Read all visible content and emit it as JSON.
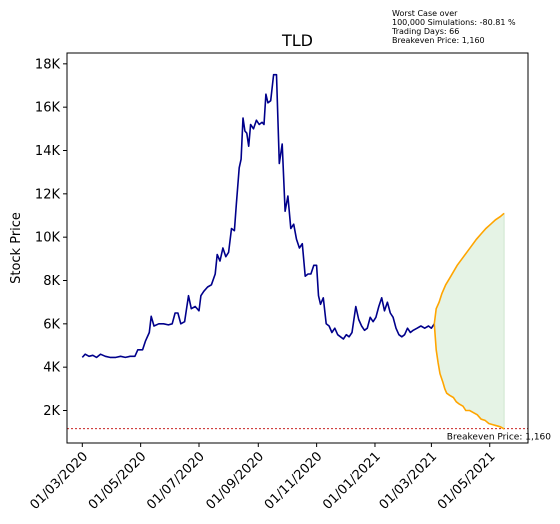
{
  "chart_data": {
    "type": "line",
    "title": "TLD",
    "ylabel": "Stock Price",
    "xlabel": "",
    "x_range": [
      "2020-02-14",
      "2021-06-10"
    ],
    "ylim": [
      500,
      18500
    ],
    "y_ticks": [
      2000,
      4000,
      6000,
      8000,
      10000,
      12000,
      14000,
      16000,
      18000
    ],
    "y_tick_labels": [
      "2K",
      "4K",
      "6K",
      "8K",
      "10K",
      "12K",
      "14K",
      "16K",
      "18K"
    ],
    "x_ticks": [
      "2020-03-01",
      "2020-05-01",
      "2020-07-01",
      "2020-09-01",
      "2020-11-01",
      "2021-01-01",
      "2021-03-01",
      "2021-05-01"
    ],
    "x_tick_labels": [
      "01/03/2020",
      "01/05/2020",
      "01/07/2020",
      "01/09/2020",
      "01/11/2020",
      "01/01/2021",
      "01/03/2021",
      "01/05/2021"
    ],
    "grid": false,
    "annotation_lines": [
      "Worst Case over",
      "100,000 Simulations: -80.81 %",
      "Trading Days: 66",
      "Breakeven Price: 1,160"
    ],
    "breakeven": {
      "value": 1160,
      "label": "Breakeven Price: 1,160",
      "color": "#c00000"
    },
    "series": [
      {
        "type": "historical",
        "color": "#00008b",
        "points": [
          [
            "2020-03-01",
            4450
          ],
          [
            "2020-03-04",
            4600
          ],
          [
            "2020-03-08",
            4500
          ],
          [
            "2020-03-12",
            4550
          ],
          [
            "2020-03-16",
            4450
          ],
          [
            "2020-03-20",
            4600
          ],
          [
            "2020-03-25",
            4500
          ],
          [
            "2020-03-30",
            4450
          ],
          [
            "2020-04-05",
            4450
          ],
          [
            "2020-04-10",
            4500
          ],
          [
            "2020-04-15",
            4450
          ],
          [
            "2020-04-20",
            4500
          ],
          [
            "2020-04-25",
            4500
          ],
          [
            "2020-04-28",
            4800
          ],
          [
            "2020-05-03",
            4800
          ],
          [
            "2020-05-06",
            5200
          ],
          [
            "2020-05-10",
            5600
          ],
          [
            "2020-05-12",
            6350
          ],
          [
            "2020-05-15",
            5900
          ],
          [
            "2020-05-20",
            6000
          ],
          [
            "2020-05-25",
            6000
          ],
          [
            "2020-05-30",
            5950
          ],
          [
            "2020-06-03",
            6000
          ],
          [
            "2020-06-06",
            6500
          ],
          [
            "2020-06-09",
            6500
          ],
          [
            "2020-06-12",
            6000
          ],
          [
            "2020-06-16",
            6100
          ],
          [
            "2020-06-20",
            7300
          ],
          [
            "2020-06-23",
            6700
          ],
          [
            "2020-06-27",
            6800
          ],
          [
            "2020-07-01",
            6600
          ],
          [
            "2020-07-03",
            7300
          ],
          [
            "2020-07-06",
            7500
          ],
          [
            "2020-07-10",
            7700
          ],
          [
            "2020-07-14",
            7800
          ],
          [
            "2020-07-18",
            8300
          ],
          [
            "2020-07-20",
            9200
          ],
          [
            "2020-07-23",
            8900
          ],
          [
            "2020-07-26",
            9500
          ],
          [
            "2020-07-29",
            9100
          ],
          [
            "2020-08-01",
            9300
          ],
          [
            "2020-08-04",
            10400
          ],
          [
            "2020-08-07",
            10300
          ],
          [
            "2020-08-09",
            11500
          ],
          [
            "2020-08-12",
            13200
          ],
          [
            "2020-08-14",
            13600
          ],
          [
            "2020-08-16",
            15500
          ],
          [
            "2020-08-18",
            14900
          ],
          [
            "2020-08-20",
            14800
          ],
          [
            "2020-08-22",
            14200
          ],
          [
            "2020-08-24",
            15200
          ],
          [
            "2020-08-27",
            15000
          ],
          [
            "2020-08-30",
            15400
          ],
          [
            "2020-09-02",
            15200
          ],
          [
            "2020-09-05",
            15300
          ],
          [
            "2020-09-07",
            15200
          ],
          [
            "2020-09-09",
            16600
          ],
          [
            "2020-09-11",
            16200
          ],
          [
            "2020-09-14",
            16300
          ],
          [
            "2020-09-17",
            17500
          ],
          [
            "2020-09-20",
            17500
          ],
          [
            "2020-09-23",
            13400
          ],
          [
            "2020-09-26",
            14300
          ],
          [
            "2020-09-29",
            11200
          ],
          [
            "2020-10-02",
            11900
          ],
          [
            "2020-10-05",
            10400
          ],
          [
            "2020-10-08",
            10600
          ],
          [
            "2020-10-11",
            9900
          ],
          [
            "2020-10-14",
            9500
          ],
          [
            "2020-10-17",
            9700
          ],
          [
            "2020-10-20",
            8200
          ],
          [
            "2020-10-23",
            8300
          ],
          [
            "2020-10-26",
            8300
          ],
          [
            "2020-10-29",
            8700
          ],
          [
            "2020-11-01",
            8700
          ],
          [
            "2020-11-03",
            7300
          ],
          [
            "2020-11-05",
            6900
          ],
          [
            "2020-11-08",
            7200
          ],
          [
            "2020-11-11",
            6000
          ],
          [
            "2020-11-14",
            5900
          ],
          [
            "2020-11-17",
            5600
          ],
          [
            "2020-11-20",
            5800
          ],
          [
            "2020-11-23",
            5500
          ],
          [
            "2020-11-26",
            5400
          ],
          [
            "2020-11-29",
            5300
          ],
          [
            "2020-12-02",
            5500
          ],
          [
            "2020-12-05",
            5400
          ],
          [
            "2020-12-08",
            5600
          ],
          [
            "2020-12-12",
            6800
          ],
          [
            "2020-12-15",
            6200
          ],
          [
            "2020-12-18",
            5900
          ],
          [
            "2020-12-21",
            5700
          ],
          [
            "2020-12-24",
            5800
          ],
          [
            "2020-12-27",
            6300
          ],
          [
            "2020-12-30",
            6100
          ],
          [
            "2021-01-02",
            6300
          ],
          [
            "2021-01-05",
            6800
          ],
          [
            "2021-01-08",
            7200
          ],
          [
            "2021-01-11",
            6600
          ],
          [
            "2021-01-14",
            7000
          ],
          [
            "2021-01-17",
            6500
          ],
          [
            "2021-01-20",
            6300
          ],
          [
            "2021-01-23",
            5800
          ],
          [
            "2021-01-26",
            5500
          ],
          [
            "2021-01-29",
            5400
          ],
          [
            "2021-02-01",
            5500
          ],
          [
            "2021-02-04",
            5800
          ],
          [
            "2021-02-07",
            5600
          ],
          [
            "2021-02-10",
            5700
          ],
          [
            "2021-02-14",
            5800
          ],
          [
            "2021-02-18",
            5900
          ],
          [
            "2021-02-22",
            5800
          ],
          [
            "2021-02-26",
            5900
          ],
          [
            "2021-03-01",
            5800
          ],
          [
            "2021-03-04",
            6000
          ]
        ]
      },
      {
        "type": "simulation-upper",
        "color": "#ffa500",
        "points": [
          [
            "2021-03-04",
            6000
          ],
          [
            "2021-03-06",
            6700
          ],
          [
            "2021-03-09",
            7000
          ],
          [
            "2021-03-12",
            7400
          ],
          [
            "2021-03-16",
            7800
          ],
          [
            "2021-03-20",
            8100
          ],
          [
            "2021-03-24",
            8400
          ],
          [
            "2021-03-28",
            8700
          ],
          [
            "2021-04-02",
            9000
          ],
          [
            "2021-04-07",
            9300
          ],
          [
            "2021-04-12",
            9600
          ],
          [
            "2021-04-17",
            9900
          ],
          [
            "2021-04-22",
            10150
          ],
          [
            "2021-04-27",
            10400
          ],
          [
            "2021-05-02",
            10600
          ],
          [
            "2021-05-07",
            10800
          ],
          [
            "2021-05-12",
            10950
          ],
          [
            "2021-05-16",
            11100
          ]
        ]
      },
      {
        "type": "simulation-lower",
        "color": "#ffa500",
        "points": [
          [
            "2021-03-04",
            6000
          ],
          [
            "2021-03-06",
            4800
          ],
          [
            "2021-03-08",
            4200
          ],
          [
            "2021-03-10",
            3700
          ],
          [
            "2021-03-13",
            3300
          ],
          [
            "2021-03-15",
            3000
          ],
          [
            "2021-03-17",
            2800
          ],
          [
            "2021-03-20",
            2700
          ],
          [
            "2021-03-24",
            2600
          ],
          [
            "2021-03-27",
            2400
          ],
          [
            "2021-03-30",
            2300
          ],
          [
            "2021-04-03",
            2200
          ],
          [
            "2021-04-06",
            2000
          ],
          [
            "2021-04-10",
            2000
          ],
          [
            "2021-04-14",
            1900
          ],
          [
            "2021-04-18",
            1800
          ],
          [
            "2021-04-22",
            1600
          ],
          [
            "2021-04-26",
            1550
          ],
          [
            "2021-04-30",
            1400
          ],
          [
            "2021-05-04",
            1350
          ],
          [
            "2021-05-08",
            1300
          ],
          [
            "2021-05-12",
            1250
          ],
          [
            "2021-05-16",
            1150
          ]
        ]
      }
    ],
    "fill_color": "#dcefdc"
  }
}
